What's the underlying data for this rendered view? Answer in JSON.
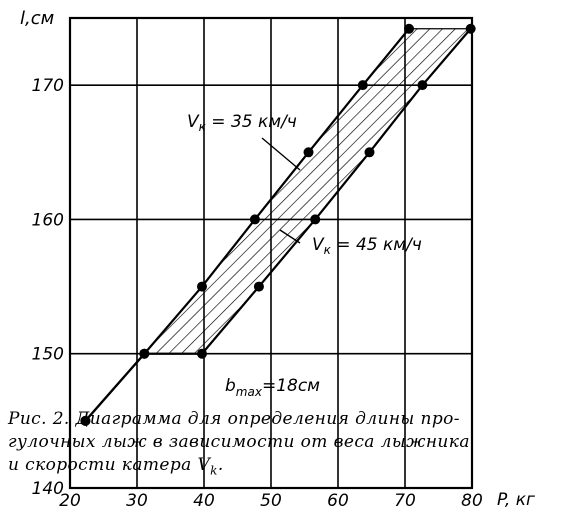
{
  "chart_data": {
    "type": "area",
    "ylabel": "l,см",
    "xlabel": "P, кг",
    "xlim": [
      20,
      80
    ],
    "ylim": [
      140,
      175
    ],
    "x_ticks": [
      20,
      30,
      40,
      50,
      60,
      70,
      80
    ],
    "y_ticks": [
      140,
      150,
      160,
      170
    ],
    "x_tick_labels": [
      "20",
      "30",
      "40",
      "50",
      "60",
      "70",
      "80"
    ],
    "y_tick_labels": [
      "140",
      "150",
      "160",
      "170"
    ],
    "grid": true,
    "series": [
      {
        "name": "Vк = 35 км/ч",
        "x": [
          22.3,
          31.1,
          39.7,
          47.6,
          55.6,
          63.7,
          70.6
        ],
        "y": [
          145,
          150,
          155,
          160,
          165,
          170,
          174.2
        ]
      },
      {
        "name": "Vк = 45 км/ч",
        "x": [
          22.3,
          31.1,
          39.7,
          48.2,
          56.6,
          64.7,
          72.6,
          79.8
        ],
        "y": [
          145,
          150,
          150,
          155,
          160,
          165,
          170,
          174.2
        ]
      }
    ],
    "hatched_band_between": [
      "Vк = 35 км/ч",
      "Vк = 45 км/ч"
    ],
    "annotations": {
      "v35": "V",
      "v35_sub": "к",
      "v35_rest": " = 35 км/ч",
      "v45": "V",
      "v45_sub": "к",
      "v45_rest": " = 45 км/ч",
      "bmax": "b",
      "bmax_sub": "max",
      "bmax_rest": "=18см"
    }
  },
  "caption": {
    "line1": "Рис. 2. Диаграмма для определения длины про-",
    "line2": "гулочных лыж в зависимости от веса лыжника",
    "line3": "и скорости катера V",
    "line3_sub": "k",
    "line3_end": "."
  }
}
